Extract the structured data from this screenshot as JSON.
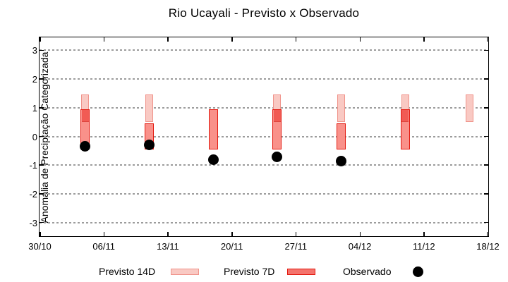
{
  "title": "Rio Ucayali - Previsto x Observado",
  "ylabel": "Anomalia de Preciptação Categorizada",
  "legend": {
    "items": [
      {
        "label": "Previsto 14D",
        "swatch": "light-pink-bar",
        "fill": "#f9c9c3",
        "border": "#f0938a"
      },
      {
        "label": "Previsto 7D",
        "swatch": "red-bar",
        "fill": "#f4736c",
        "border": "#e31a10"
      },
      {
        "label": "Observado",
        "swatch": "black-dot",
        "fill": "#000000"
      }
    ]
  },
  "chart_data": {
    "type": "bar",
    "title": "Rio Ucayali - Previsto x Observado",
    "xlabel": "",
    "ylabel": "Anomalia de Preciptação Categorizada",
    "ylim": [
      -3.45,
      3.45
    ],
    "y_ticks": [
      3,
      2,
      1,
      0,
      -1,
      -2,
      -3
    ],
    "x_tick_labels": [
      "30/10",
      "06/11",
      "13/11",
      "20/11",
      "27/11",
      "04/12",
      "11/12",
      "18/12"
    ],
    "x_tick_days": [
      0,
      7,
      14,
      21,
      28,
      35,
      42,
      49
    ],
    "x_range_days": [
      0,
      49
    ],
    "grid": "dotted-horizontal",
    "legend_position": "below",
    "series": [
      {
        "name": "Previsto 14D",
        "type": "range-bar",
        "fill": "#f9c9c3",
        "border": "#f0938a",
        "points": [
          {
            "date": "04/11",
            "day": 5,
            "lo": 0.5,
            "hi": 1.45
          },
          {
            "date": "11/11",
            "day": 12,
            "lo": 0.5,
            "hi": 1.45
          },
          {
            "date": "25/11",
            "day": 26,
            "lo": 0.5,
            "hi": 1.45
          },
          {
            "date": "02/12",
            "day": 33,
            "lo": 0.5,
            "hi": 1.45
          },
          {
            "date": "09/12",
            "day": 40,
            "lo": 0.5,
            "hi": 1.45
          },
          {
            "date": "16/12",
            "day": 47,
            "lo": 0.5,
            "hi": 1.45
          }
        ]
      },
      {
        "name": "Previsto 7D",
        "type": "range-bar",
        "fill": "#f9918a",
        "border": "#e31a10",
        "overlap_fill": "#f15b54",
        "points": [
          {
            "date": "04/11",
            "day": 5,
            "lo": -0.45,
            "hi": 0.95
          },
          {
            "date": "11/11",
            "day": 12,
            "lo": -0.45,
            "hi": 0.45
          },
          {
            "date": "18/11",
            "day": 19,
            "lo": -0.45,
            "hi": 0.95
          },
          {
            "date": "25/11",
            "day": 26,
            "lo": -0.45,
            "hi": 0.95
          },
          {
            "date": "02/12",
            "day": 33,
            "lo": -0.45,
            "hi": 0.45
          },
          {
            "date": "09/12",
            "day": 40,
            "lo": -0.45,
            "hi": 0.95
          }
        ]
      },
      {
        "name": "Observado",
        "type": "scatter",
        "color": "#000000",
        "points": [
          {
            "date": "04/11",
            "day": 5,
            "value": -0.35
          },
          {
            "date": "11/11",
            "day": 12,
            "value": -0.3
          },
          {
            "date": "18/11",
            "day": 19,
            "value": -0.8
          },
          {
            "date": "25/11",
            "day": 26,
            "value": -0.7
          },
          {
            "date": "02/12",
            "day": 33,
            "value": -0.85
          }
        ]
      }
    ]
  }
}
